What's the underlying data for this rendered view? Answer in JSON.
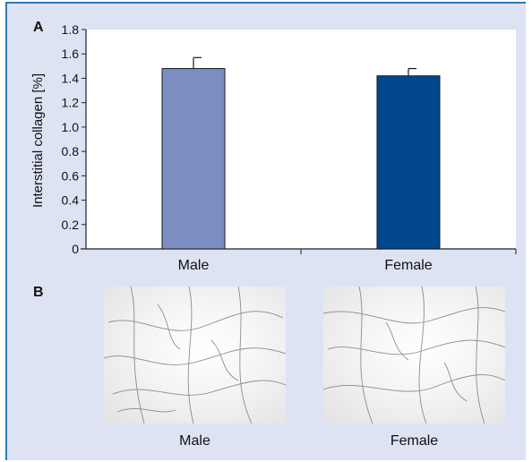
{
  "panels": {
    "a_label": "A",
    "b_label": "B"
  },
  "chart_data": {
    "type": "bar",
    "categories": [
      "Male",
      "Female"
    ],
    "values": [
      1.48,
      1.42
    ],
    "errors": [
      0.09,
      0.06
    ],
    "colors": [
      "#7b8dc1",
      "#00478f"
    ],
    "ylabel": "Interstitial collagen [%]",
    "xlabel": "",
    "ylim": [
      0,
      1.8
    ],
    "yticks": [
      "0",
      "0.2",
      "0.4",
      "0.6",
      "0.8",
      "1.0",
      "1.2",
      "1.4",
      "1.6",
      "1.8"
    ],
    "grid": false
  },
  "images": [
    {
      "caption": "Male"
    },
    {
      "caption": "Female"
    }
  ],
  "colors": {
    "panel_background": "#dde3f3",
    "border": "#2a7ab8"
  }
}
